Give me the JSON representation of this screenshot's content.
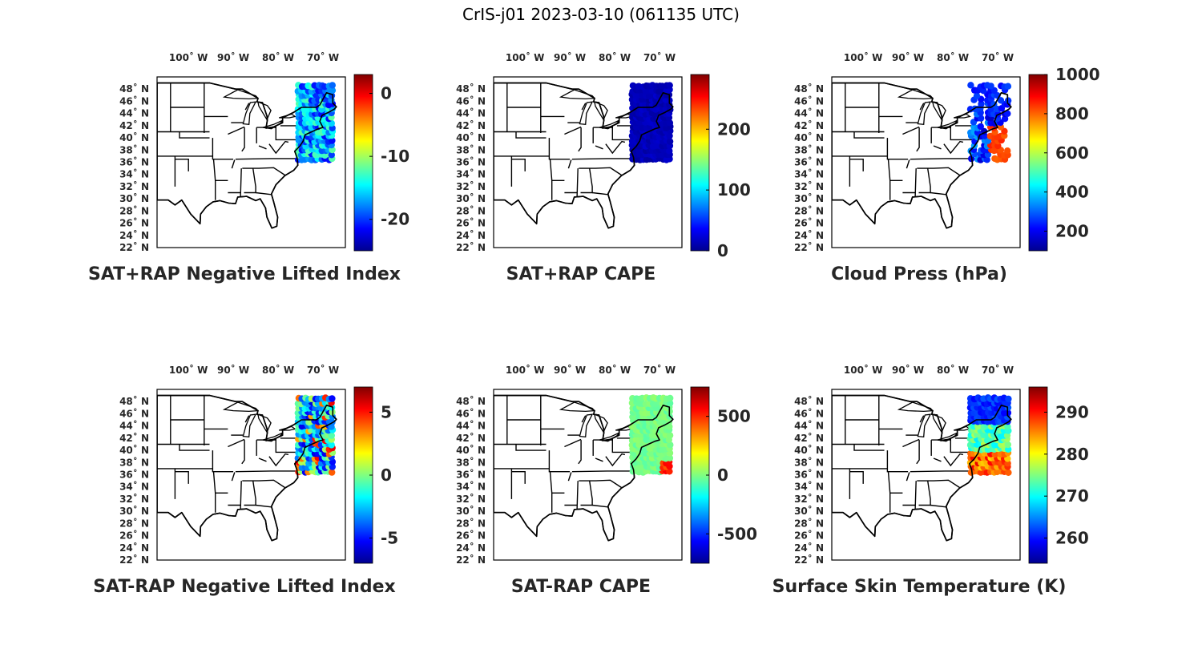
{
  "figure": {
    "title": "CrIS-j01 2023-03-10 (061135 UTC)"
  },
  "colormap": [
    "#00008f",
    "#0000ff",
    "#0080ff",
    "#00ffff",
    "#80ff80",
    "#ffff00",
    "#ff8000",
    "#ff0000",
    "#800000"
  ],
  "map": {
    "lon_range": [
      -107,
      -65
    ],
    "lat_range": [
      22,
      50
    ],
    "lon_ticks": [
      {
        "lon": -100,
        "label": "100˚ W"
      },
      {
        "lon": -90,
        "label": "90˚ W"
      },
      {
        "lon": -80,
        "label": "80˚ W"
      },
      {
        "lon": -70,
        "label": "70˚ W"
      }
    ],
    "lat_ticks": [
      {
        "lat": 48,
        "label": "48˚ N"
      },
      {
        "lat": 46,
        "label": "46˚ N"
      },
      {
        "lat": 44,
        "label": "44˚ N"
      },
      {
        "lat": 42,
        "label": "42˚ N"
      },
      {
        "lat": 40,
        "label": "40˚ N"
      },
      {
        "lat": 38,
        "label": "38˚ N"
      },
      {
        "lat": 36,
        "label": "36˚ N"
      },
      {
        "lat": 34,
        "label": "34˚ N"
      },
      {
        "lat": 32,
        "label": "32˚ N"
      },
      {
        "lat": 30,
        "label": "30˚ N"
      },
      {
        "lat": 28,
        "label": "28˚ N"
      },
      {
        "lat": 26,
        "label": "26˚ N"
      },
      {
        "lat": 24,
        "label": "24˚ N"
      },
      {
        "lat": 22,
        "label": "22˚ N"
      }
    ]
  },
  "chart_data": [
    {
      "type": "scatter",
      "title": "SAT+RAP Negative Lifted Index",
      "clim": [
        -25,
        3
      ],
      "cticks": [
        0,
        -10,
        -20
      ],
      "swath": {
        "lon": [
          -75.5,
          -67.5
        ],
        "lat": [
          36.5,
          48.5
        ]
      },
      "field": "nli_sum"
    },
    {
      "type": "scatter",
      "title": "SAT+RAP CAPE",
      "clim": [
        0,
        290
      ],
      "cticks": [
        0,
        100,
        200
      ],
      "swath": {
        "lon": [
          -76,
          -67.5
        ],
        "lat": [
          36.5,
          48.5
        ]
      },
      "field": "cape_sum"
    },
    {
      "type": "scatter",
      "title": "Cloud Press (hPa)",
      "clim": [
        100,
        1000
      ],
      "cticks": [
        200,
        400,
        600,
        800,
        1000
      ],
      "swath": {
        "lon": [
          -76,
          -67.5
        ],
        "lat": [
          36.5,
          48.5
        ]
      },
      "field": "cloud_press"
    },
    {
      "type": "scatter",
      "title": "SAT-RAP Negative Lifted Index",
      "clim": [
        -7,
        7
      ],
      "cticks": [
        -5,
        0,
        5
      ],
      "swath": {
        "lon": [
          -75.5,
          -67.5
        ],
        "lat": [
          36.5,
          48.5
        ]
      },
      "field": "nli_diff"
    },
    {
      "type": "scatter",
      "title": "SAT-RAP CAPE",
      "clim": [
        -750,
        750
      ],
      "cticks": [
        -500,
        0,
        500
      ],
      "swath": {
        "lon": [
          -76,
          -67.5
        ],
        "lat": [
          36.5,
          48.5
        ]
      },
      "field": "cape_diff"
    },
    {
      "type": "scatter",
      "title": "Surface Skin Temperature (K)",
      "clim": [
        254,
        296
      ],
      "cticks": [
        260,
        270,
        280,
        290
      ],
      "swath": {
        "lon": [
          -76,
          -67.5
        ],
        "lat": [
          36.5,
          48.5
        ]
      },
      "field": "skin_temp"
    }
  ]
}
